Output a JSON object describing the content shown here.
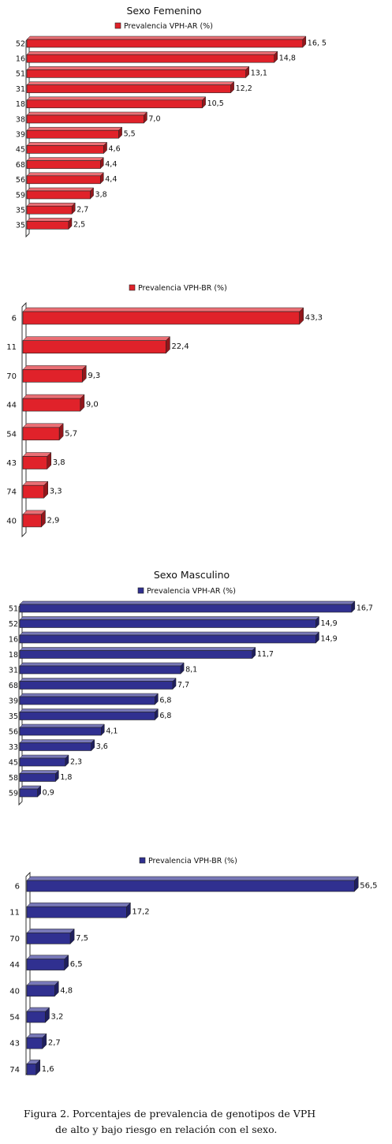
{
  "chart_data": [
    {
      "type": "bar",
      "orientation": "horizontal",
      "title": "Sexo Femenino",
      "legend": "Prevalencia VPH-AR   (%)",
      "color": "#e0222a",
      "categories": [
        "52",
        "16",
        "51",
        "31",
        "18",
        "38",
        "39",
        "45",
        "68",
        "56",
        "59",
        "35",
        "35"
      ],
      "values": [
        16.5,
        14.8,
        13.1,
        12.2,
        10.5,
        7.0,
        5.5,
        4.6,
        4.4,
        4.4,
        3.8,
        2.7,
        2.5
      ],
      "value_labels": [
        "16, 5",
        "14,8",
        "13,1",
        "12,2",
        "10,5",
        "7,0",
        "5,5",
        "4,6",
        "4,4",
        "4,4",
        "3,8",
        "2,7",
        "2,5"
      ]
    },
    {
      "type": "bar",
      "orientation": "horizontal",
      "title": "",
      "legend": "Prevalencia VPH-BR (%)",
      "color": "#e0222a",
      "categories": [
        "6",
        "11",
        "70",
        "44",
        "54",
        "43",
        "74",
        "40"
      ],
      "values": [
        43.3,
        22.4,
        9.3,
        9.0,
        5.7,
        3.8,
        3.3,
        2.9
      ],
      "value_labels": [
        "43,3",
        "22,4",
        "9,3",
        "9,0",
        "5,7",
        "3,8",
        "3,3",
        "2,9"
      ]
    },
    {
      "type": "bar",
      "orientation": "horizontal",
      "title": "Sexo Masculino",
      "legend": "Prevalencia VPH-AR   (%)",
      "color": "#303090",
      "categories": [
        "51",
        "52",
        "16",
        "18",
        "31",
        "68",
        "39",
        "35",
        "56",
        "33",
        "45",
        "58",
        "59"
      ],
      "values": [
        16.7,
        14.9,
        14.9,
        11.7,
        8.1,
        7.7,
        6.8,
        6.8,
        4.1,
        3.6,
        2.3,
        1.8,
        0.9
      ],
      "value_labels": [
        "16,7",
        "14,9",
        "14,9",
        "11,7",
        "8,1",
        "7,7",
        "6,8",
        "6,8",
        "4,1",
        "3,6",
        "2,3",
        "1,8",
        "0,9"
      ]
    },
    {
      "type": "bar",
      "orientation": "horizontal",
      "title": "",
      "legend": "Prevalencia VPH-BR   (%)",
      "color": "#303090",
      "categories": [
        "6",
        "11",
        "70",
        "44",
        "40",
        "54",
        "43",
        "74"
      ],
      "values": [
        56.5,
        17.2,
        7.5,
        6.5,
        4.8,
        3.2,
        2.7,
        1.6
      ],
      "value_labels": [
        "56,5",
        "17,2",
        "7,5",
        "6,5",
        "4,8",
        "3,2",
        "2,7",
        "1,6"
      ]
    }
  ],
  "caption": {
    "line1": "Figura 2.  Porcentajes de prevalencia de genotipos de VPH",
    "line2": "de alto y bajo riesgo en relación con el sexo."
  }
}
